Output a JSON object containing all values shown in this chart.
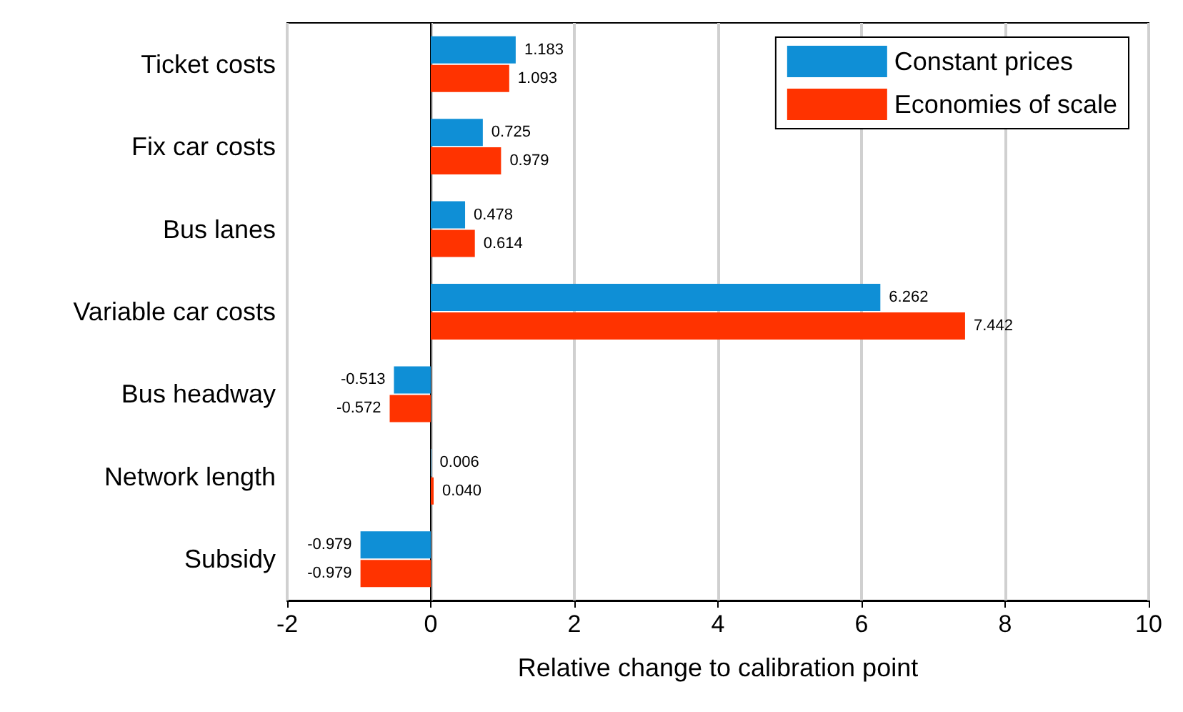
{
  "chart_data": {
    "type": "bar",
    "orientation": "horizontal",
    "xlabel": "Relative change to calibration point",
    "categories": [
      "Ticket costs",
      "Fix car costs",
      "Bus lanes",
      "Variable car costs",
      "Bus headway",
      "Network length",
      "Subsidy"
    ],
    "series": [
      {
        "name": "Constant prices",
        "color": "#0f8fd6",
        "values": [
          1.183,
          0.725,
          0.478,
          6.262,
          -0.513,
          0.006,
          -0.979
        ],
        "value_labels": [
          "1.183",
          "0.725",
          "0.478",
          "6.262",
          "-0.513",
          "0.006",
          "-0.979"
        ]
      },
      {
        "name": "Economies of scale",
        "color": "#ff3300",
        "values": [
          1.093,
          0.979,
          0.614,
          7.442,
          -0.572,
          0.04,
          -0.979
        ],
        "value_labels": [
          "1.093",
          "0.979",
          "0.614",
          "7.442",
          "-0.572",
          "0.040",
          "-0.979"
        ]
      }
    ],
    "xlim": [
      -2,
      10
    ],
    "xticks": [
      -2,
      0,
      2,
      4,
      6,
      8,
      10
    ],
    "grid": "x",
    "legend": "top right"
  }
}
